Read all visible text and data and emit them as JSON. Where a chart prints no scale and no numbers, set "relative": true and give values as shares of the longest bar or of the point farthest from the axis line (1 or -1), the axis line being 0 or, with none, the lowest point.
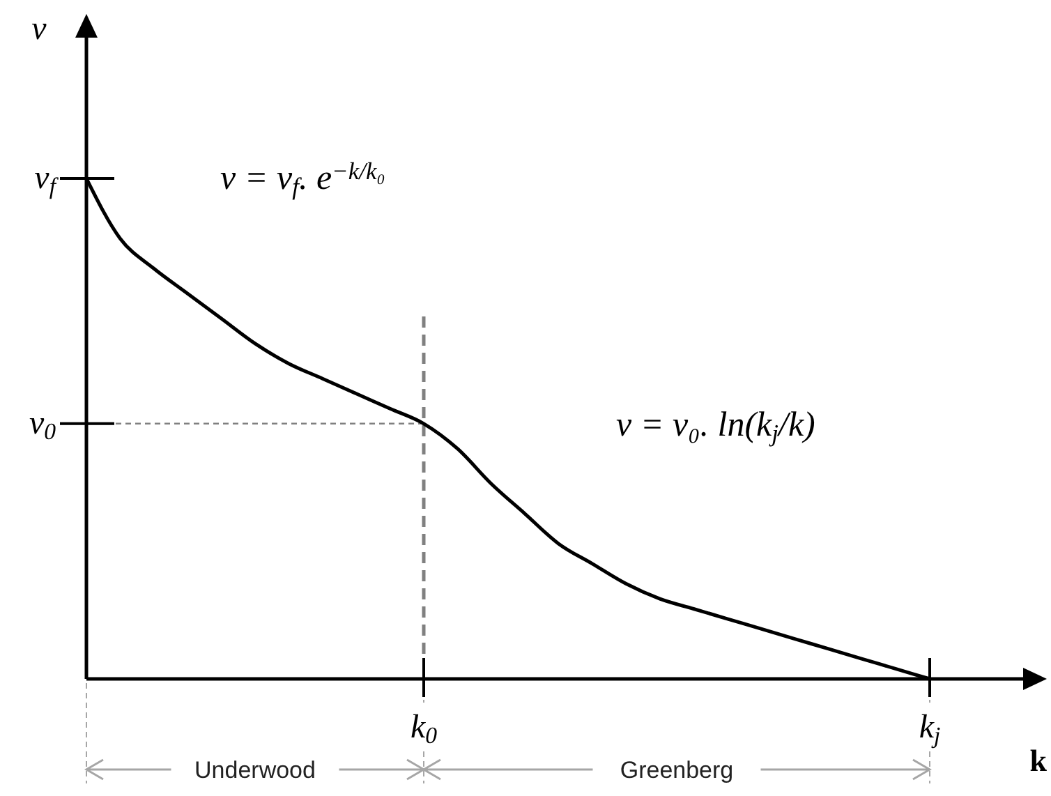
{
  "chart_data": {
    "type": "line",
    "relative": true,
    "xlabel": "k",
    "ylabel": "v",
    "categories": [
      null,
      null,
      null,
      null,
      null,
      null,
      null,
      null,
      null,
      null,
      "k$_{0}$",
      null,
      null,
      null,
      null,
      null,
      null,
      null,
      null,
      null,
      null,
      null,
      null,
      null,
      null,
      "k$_{j}$"
    ],
    "series": [
      {
        "color": "#000000",
        "values": [
          1,
          0.88,
          0.82,
          0.77,
          0.72,
          0.67,
          0.63,
          0.6,
          0.57,
          0.54,
          0.51,
          0.46,
          0.39,
          0.33,
          0.27,
          0.23,
          0.19,
          0.16,
          0.14,
          0.12,
          0.1,
          0.08,
          0.06,
          0.04,
          0.02,
          0
        ]
      }
    ],
    "ref_lines": [
      {
        "axis": "x",
        "value": "k$_{0}$",
        "color": "#808080",
        "line_style": "dashed"
      },
      {
        "axis": "y",
        "value": 0.51,
        "color": "#808080",
        "line_style": "dashed"
      }
    ],
    "annotations": [
      "v = v$_{f}$. e$^{−k/k₀}$",
      "v = v₀. ln(k$_{j}$/k)",
      "Underwood",
      "Greenberg",
      "v$_{f}$",
      "v$_{0}$"
    ]
  }
}
